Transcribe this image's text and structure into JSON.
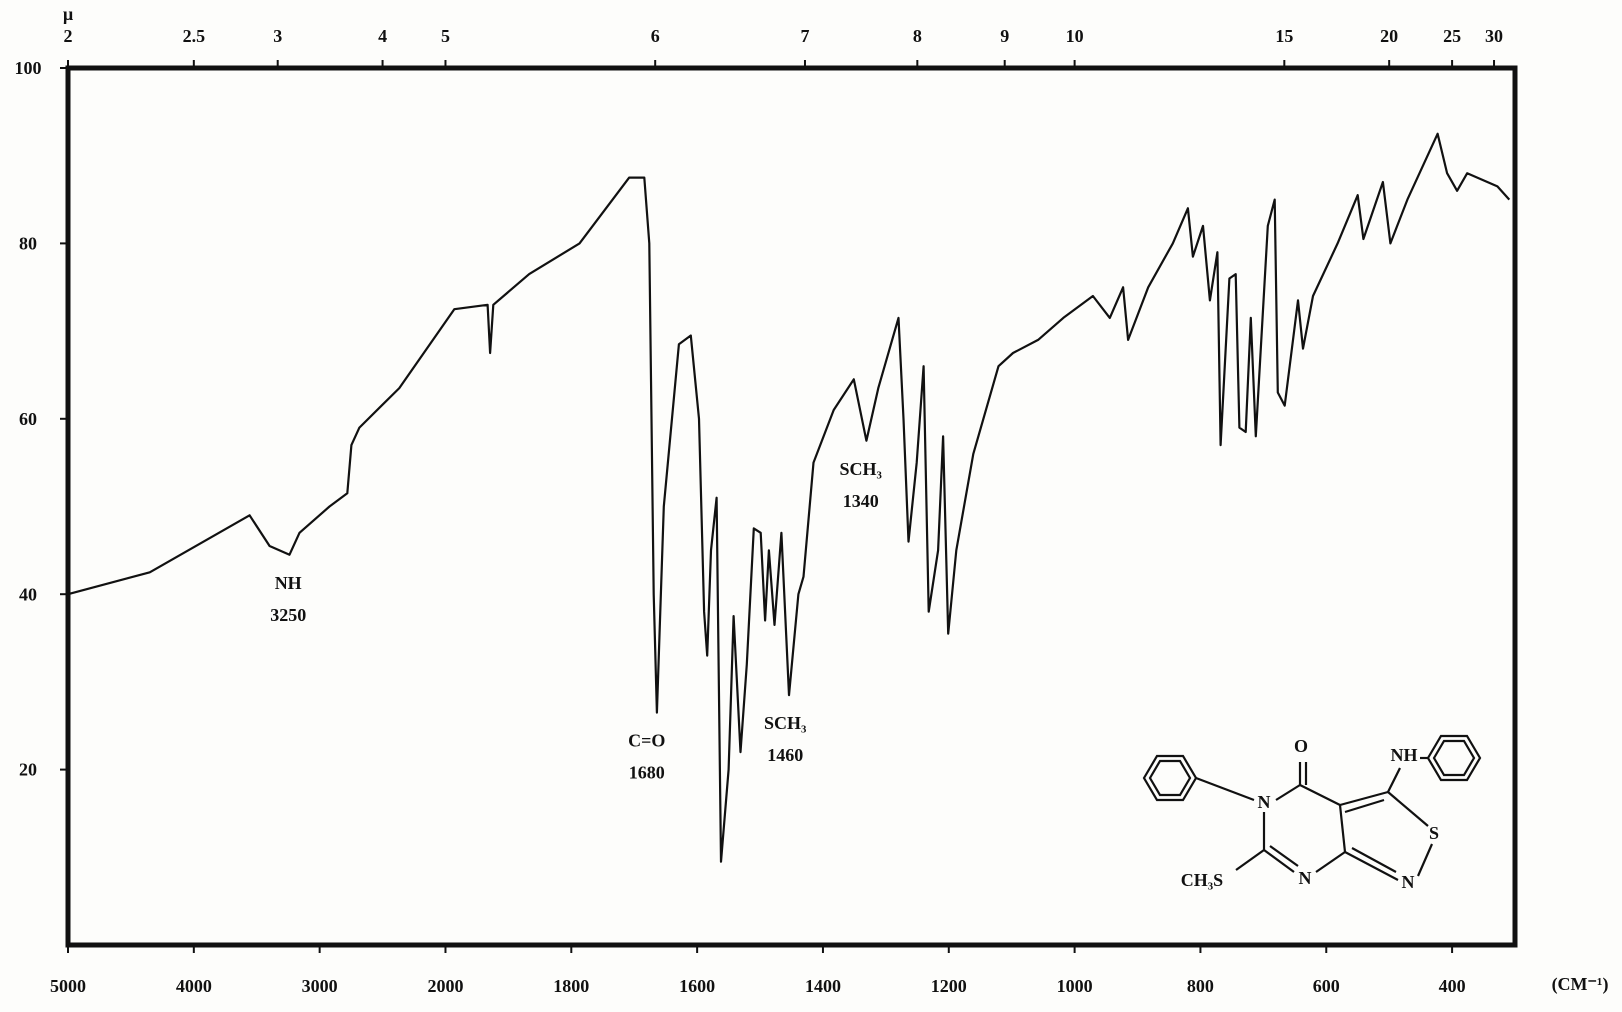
{
  "chart_data": {
    "type": "line",
    "x": [
      5000,
      4350,
      3557,
      3398,
      3240,
      3160,
      2922,
      2780,
      2748,
      2684,
      2367,
      1986,
      1933,
      1929,
      1924,
      1867,
      1787,
      1708,
      1684,
      1676,
      1669,
      1664,
      1653,
      1629,
      1610,
      1597,
      1589,
      1584,
      1578,
      1569,
      1562,
      1550,
      1542,
      1531,
      1521,
      1510,
      1499,
      1492,
      1486,
      1477,
      1466,
      1454,
      1439,
      1431,
      1415,
      1383,
      1351,
      1331,
      1312,
      1280,
      1272,
      1264,
      1251,
      1240,
      1232,
      1217,
      1209,
      1201,
      1188,
      1161,
      1121,
      1098,
      1058,
      1018,
      971,
      944,
      923,
      915,
      883,
      844,
      820,
      812,
      796,
      785,
      773,
      768,
      754,
      744,
      738,
      728,
      720,
      712,
      693,
      682,
      677,
      666,
      645,
      637,
      621,
      582,
      550,
      541,
      510,
      498,
      471,
      423,
      408,
      392,
      376,
      328,
      309
    ],
    "values": [
      40,
      42.5,
      49,
      45.5,
      44.5,
      47,
      50,
      51.5,
      57,
      59,
      63.5,
      72.5,
      73,
      67.5,
      73,
      76.5,
      80,
      87.5,
      87.5,
      80,
      40,
      26.5,
      50,
      68.5,
      69.5,
      60,
      38,
      33,
      45,
      51,
      9.5,
      20,
      37.5,
      22,
      32,
      47.5,
      47,
      37,
      45,
      36.5,
      47,
      28.5,
      40,
      42,
      55,
      61,
      64.5,
      57.5,
      63.5,
      71.5,
      60,
      46,
      55,
      66,
      38,
      45,
      58,
      35.5,
      45,
      56,
      66,
      67.5,
      69,
      71.5,
      74,
      71.5,
      75,
      69,
      75,
      80,
      84,
      78.5,
      82,
      73.5,
      79,
      57,
      76,
      76.5,
      59,
      58.5,
      71.5,
      58,
      82,
      85,
      63,
      61.5,
      73.5,
      68,
      74,
      80,
      85.5,
      80.5,
      87,
      80,
      85,
      92.5,
      88,
      86,
      88,
      86.5,
      85
    ],
    "color": "#111111",
    "xlim": [
      5000,
      300
    ],
    "xticks": [
      5000,
      4000,
      3000,
      2000,
      1800,
      1600,
      1400,
      1200,
      1000,
      800,
      600,
      400
    ],
    "xlabel": "(CM⁻¹)",
    "x2ticks": [
      2,
      2.5,
      3,
      4,
      5,
      6,
      7,
      8,
      9,
      10,
      15,
      20,
      25,
      30
    ],
    "x2label": "µ",
    "ylim": [
      0,
      100
    ],
    "yticks": [
      20,
      40,
      60,
      80,
      100
    ],
    "grid": false,
    "annotations": [
      {
        "label": "NH",
        "value": 3250
      },
      {
        "label": "C=O",
        "value": 1680
      },
      {
        "label": "SCH₃",
        "value": 1460
      },
      {
        "label": "SCH₃",
        "value": 1340
      }
    ]
  },
  "structure": {
    "labels": [
      "O",
      "NH",
      "N",
      "S",
      "N",
      "N",
      "CH₃S"
    ]
  }
}
